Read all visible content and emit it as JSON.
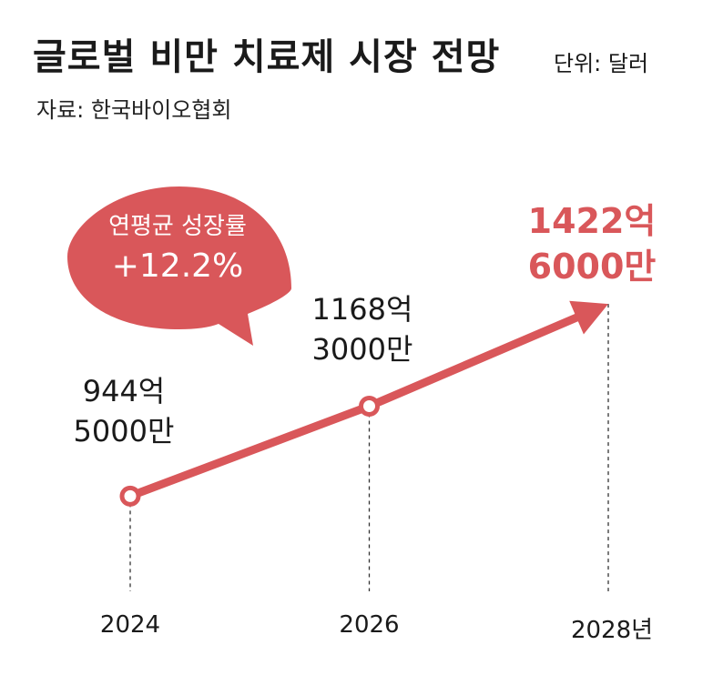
{
  "header": {
    "title": "글로벌 비만 치료제 시장 전망",
    "unit": "단위: 달러",
    "source": "자료: 한국바이오협회"
  },
  "callout": {
    "line1": "연평균 성장률",
    "line2": "+12.2%"
  },
  "colors": {
    "accent": "#d9575a",
    "text": "#1a1a1a",
    "guide": "#333333",
    "background": "#ffffff"
  },
  "chart_data": {
    "type": "line",
    "title": "글로벌 비만 치료제 시장 전망",
    "unit": "단위: 달러",
    "categories": [
      "2024",
      "2026",
      "2028년"
    ],
    "x": [
      2024,
      2026,
      2028
    ],
    "series": [
      {
        "values": [
          94450000000,
          116830000000,
          142260000000
        ]
      }
    ],
    "data_labels": [
      [
        "944억",
        "5000만"
      ],
      [
        "1168억",
        "3000만"
      ],
      [
        "1422억",
        "6000만"
      ]
    ],
    "highlighted_point": 2,
    "grid": false,
    "legend": "none"
  }
}
